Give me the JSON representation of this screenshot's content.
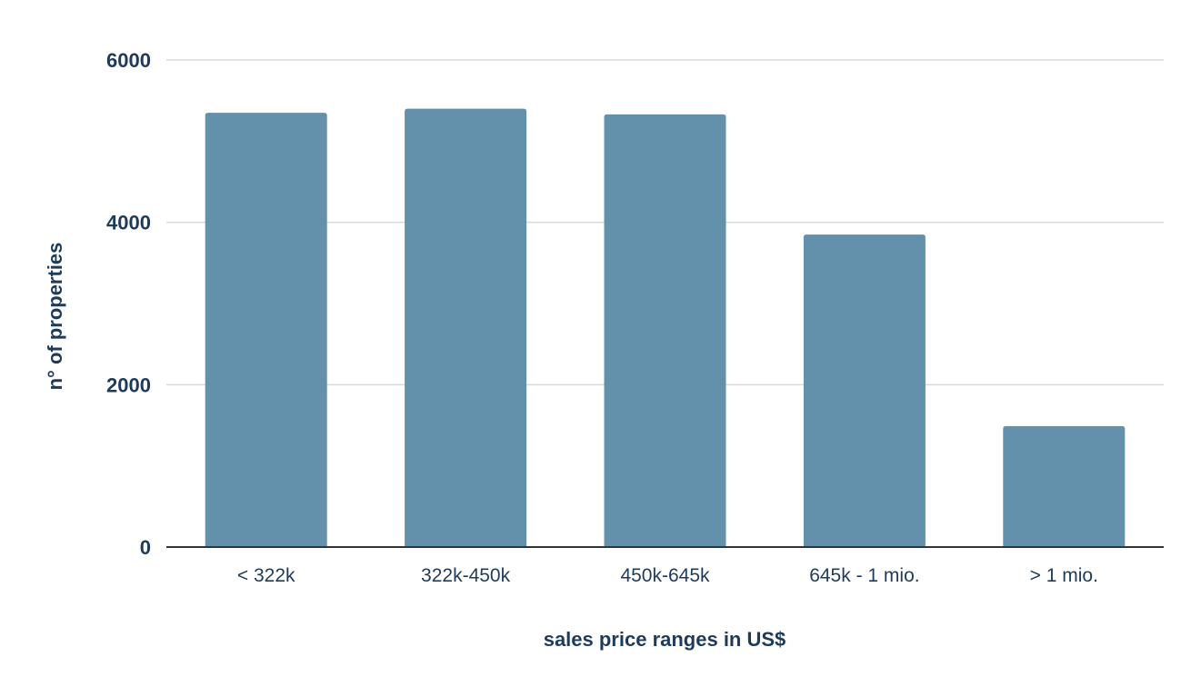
{
  "chart_data": {
    "type": "bar",
    "categories": [
      "< 322k",
      "322k-450k",
      "450k-645k",
      "645k - 1 mio.",
      "> 1 mio."
    ],
    "values": [
      5350,
      5400,
      5330,
      3850,
      1490
    ],
    "xlabel": "sales price ranges in US$",
    "ylabel": "n° of properties",
    "ylim": [
      0,
      6000
    ],
    "yticks": [
      0,
      2000,
      4000,
      6000
    ],
    "grid": true,
    "legend": "none",
    "colors": {
      "bar": "#6390ab",
      "text": "#1f3b5a",
      "grid": "#d9d9d9",
      "axis": "#333333"
    }
  }
}
